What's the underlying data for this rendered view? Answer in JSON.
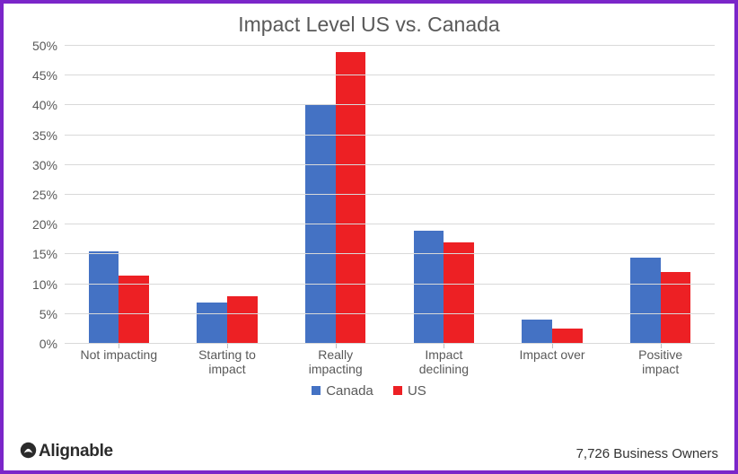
{
  "border_color": "#7b26c9",
  "chart": {
    "type": "bar",
    "title": "Impact Level US vs. Canada",
    "title_fontsize": 23,
    "ylabel_suffix": "%",
    "ylim": [
      0,
      50
    ],
    "ytick_step": 5,
    "y_ticks": [
      0,
      5,
      10,
      15,
      20,
      25,
      30,
      35,
      40,
      45,
      50
    ],
    "grid_color": "#d9d9d9",
    "axis_color": "#bfbfbf",
    "background_color": "#ffffff",
    "text_color": "#595959",
    "categories": [
      "Not impacting",
      "Starting to\nimpact",
      "Really\nimpacting",
      "Impact\ndeclining",
      "Impact over",
      "Positive\nimpact"
    ],
    "series": [
      {
        "name": "Canada",
        "color": "#4472c4",
        "values": [
          15.5,
          7,
          40,
          19,
          4,
          14.5
        ]
      },
      {
        "name": "US",
        "color": "#ed2024",
        "values": [
          11.5,
          8,
          49,
          17,
          2.5,
          12
        ]
      }
    ],
    "bar_width_pct": 28,
    "label_fontsize": 14
  },
  "legend": {
    "items": [
      {
        "label": "Canada",
        "color": "#4472c4"
      },
      {
        "label": "US",
        "color": "#ed2024"
      }
    ]
  },
  "brand": "Alignable",
  "sample_size": "7,726 Business Owners"
}
